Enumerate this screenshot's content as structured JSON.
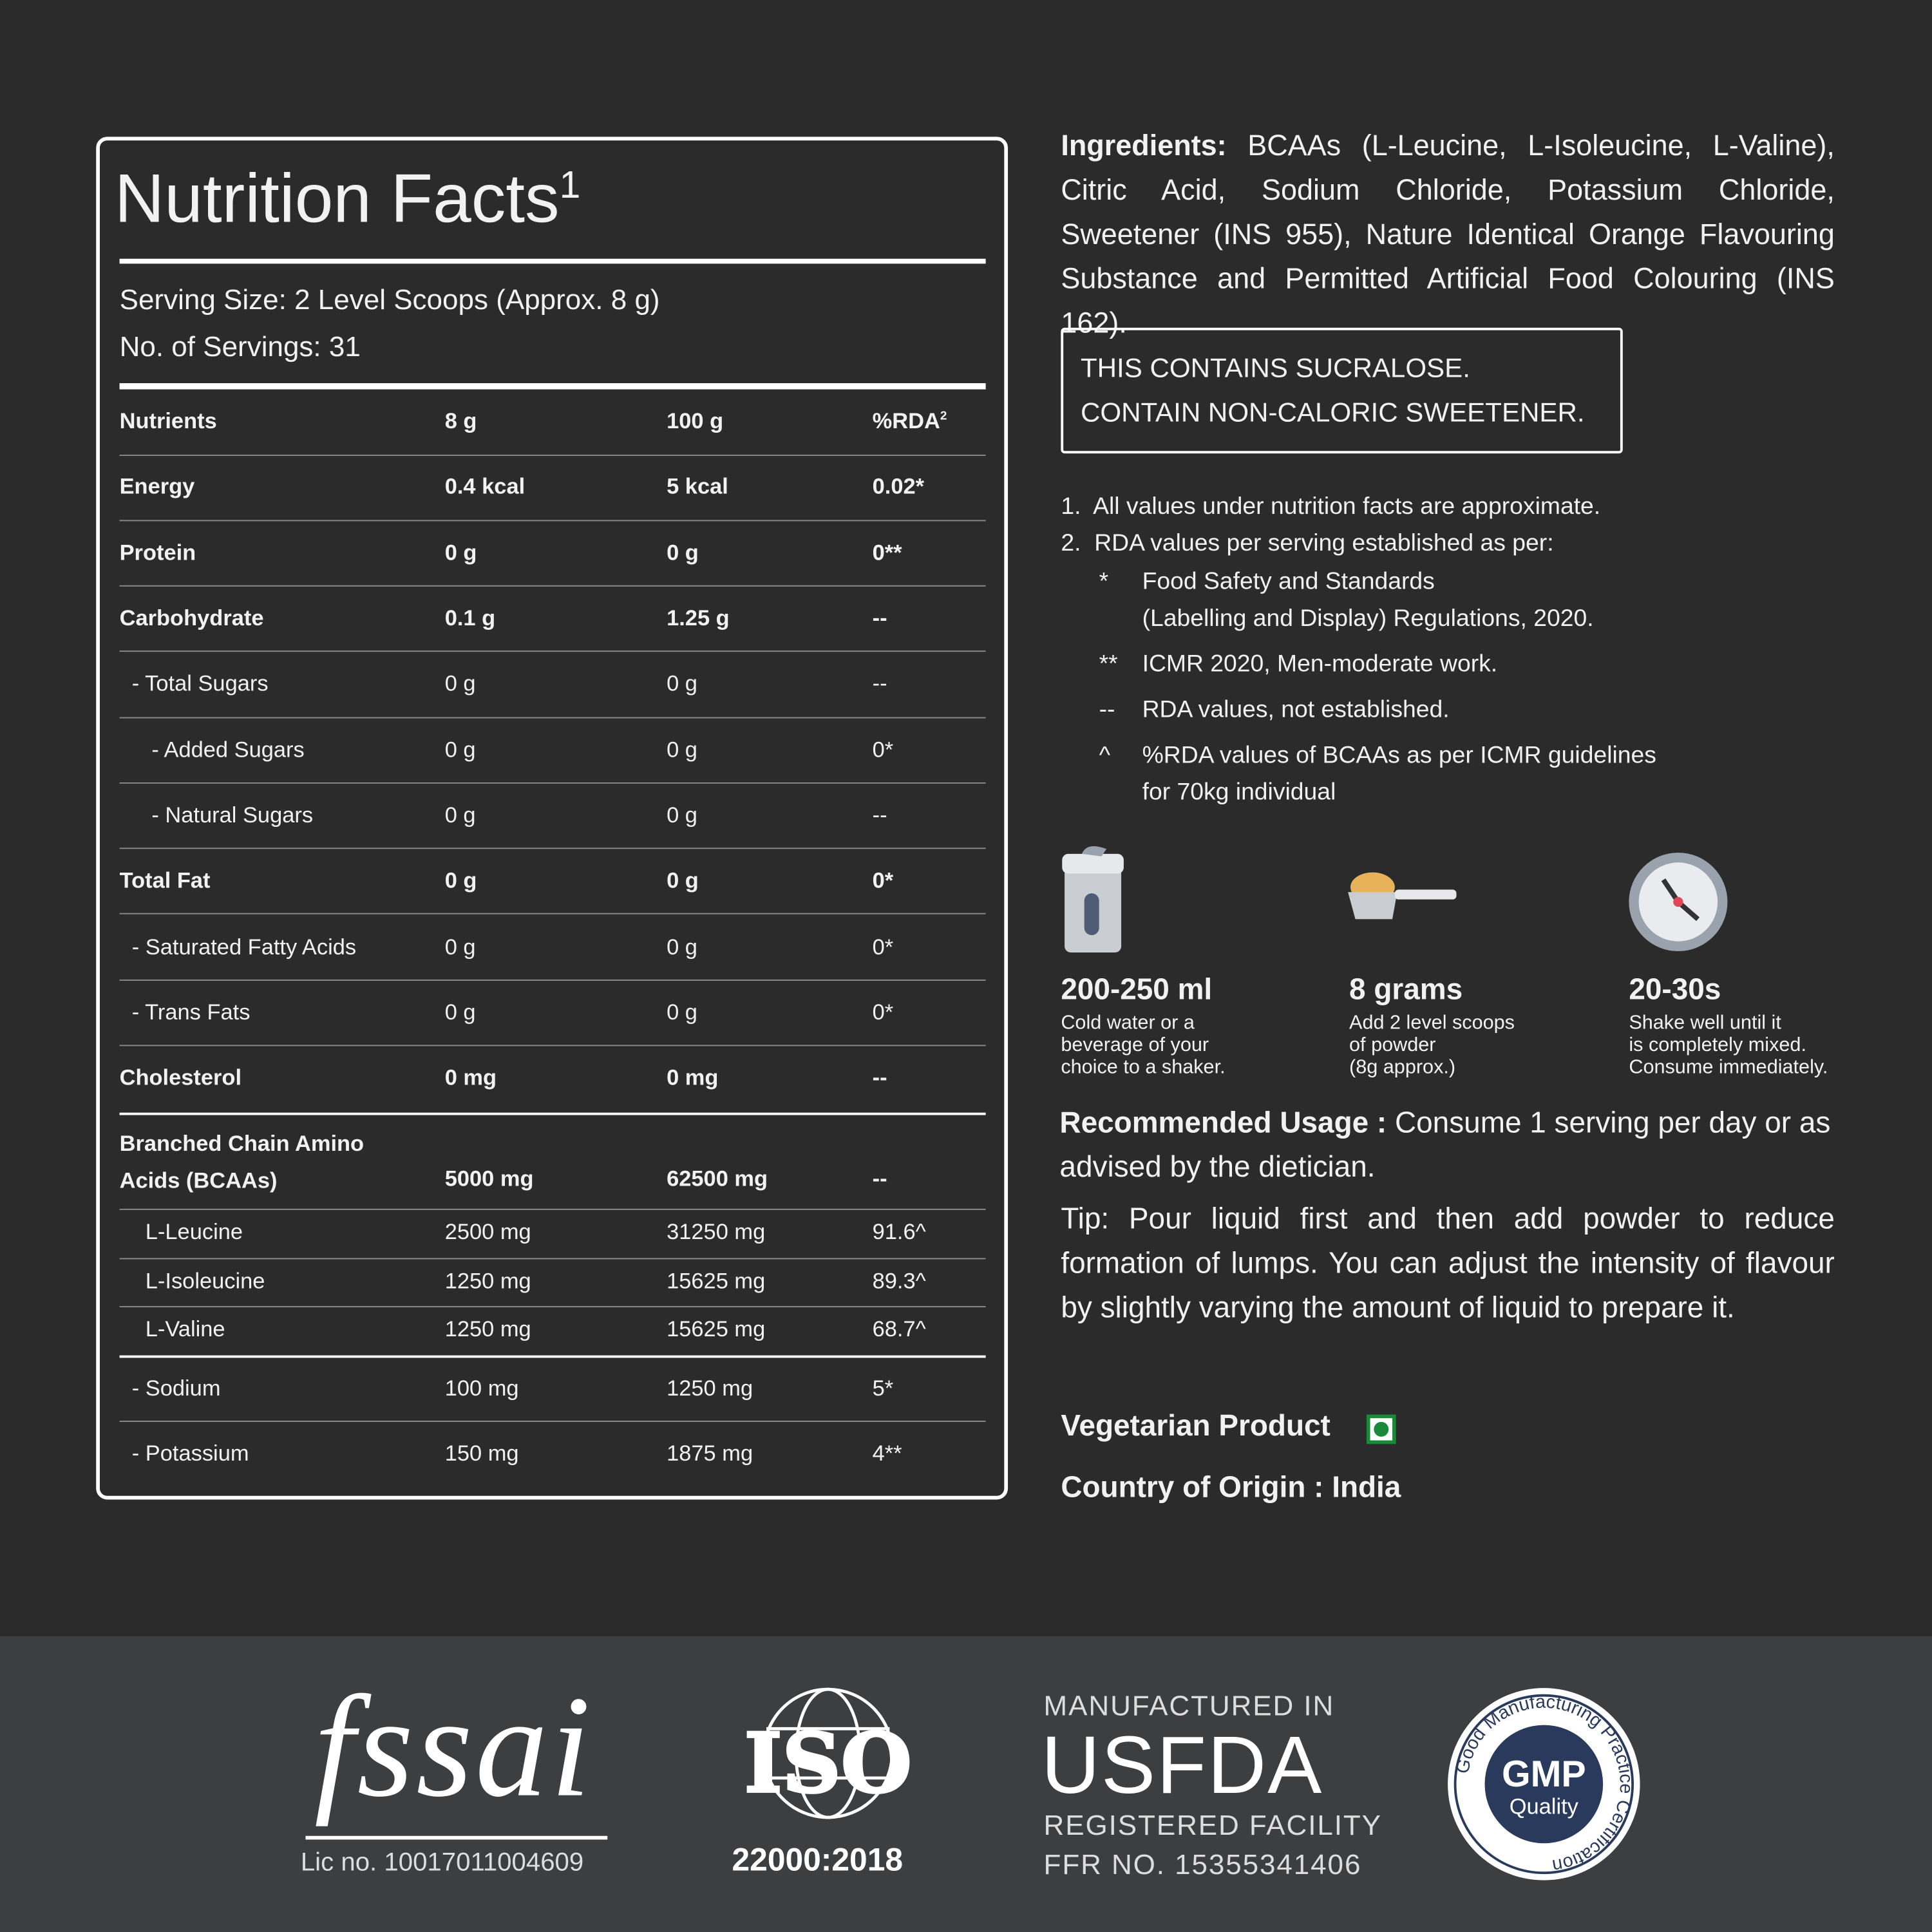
{
  "nutrition": {
    "title": "Nutrition Facts",
    "title_note": "1",
    "serving_size": "Serving Size: 2 Level Scoops (Approx. 8 g)",
    "servings": "No. of Servings: 31",
    "columns": [
      "Nutrients",
      "8 g",
      "100 g",
      "%RDA"
    ],
    "columns_note": "2",
    "rows": [
      [
        "Energy",
        "0.4 kcal",
        "5 kcal",
        "0.02*"
      ],
      [
        "Protein",
        "0 g",
        "0 g",
        "0**"
      ],
      [
        "Carbohydrate",
        "0.1 g",
        "1.25 g",
        "--"
      ],
      [
        "- Total Sugars",
        "0 g",
        "0 g",
        "--"
      ],
      [
        "- Added Sugars",
        "0 g",
        "0 g",
        "0*"
      ],
      [
        "- Natural Sugars",
        "0 g",
        "0 g",
        "--"
      ],
      [
        "Total Fat",
        "0 g",
        "0 g",
        "0*"
      ],
      [
        "- Saturated Fatty Acids",
        "0 g",
        "0 g",
        "0*"
      ],
      [
        "- Trans Fats",
        "0 g",
        "0 g",
        "0*"
      ],
      [
        "Cholesterol",
        "0 mg",
        "0 mg",
        "--"
      ],
      [
        "Branched Chain Amino Acids (BCAAs)",
        "5000 mg",
        "62500 mg",
        "--"
      ],
      [
        "L-Leucine",
        "2500 mg",
        "31250 mg",
        "91.6^"
      ],
      [
        "L-Isoleucine",
        "1250 mg",
        "15625 mg",
        "89.3^"
      ],
      [
        "L-Valine",
        "1250 mg",
        "15625 mg",
        "68.7^"
      ],
      [
        "- Sodium",
        "100 mg",
        "1250 mg",
        "5*"
      ],
      [
        "- Potassium",
        "150 mg",
        "1875 mg",
        "4**"
      ]
    ]
  },
  "ingredients": {
    "label": "Ingredients:",
    "text": "BCAAs (L-Leucine, L-Isoleucine, L-Valine), Citric Acid, Sodium Chloride, Potassium Chloride, Sweetener (INS 955), Nature Identical Orange Flavouring Substance and Permitted Artificial Food Colouring (INS 162)."
  },
  "warning": [
    "THIS CONTAINS SUCRALOSE.",
    "CONTAIN NON-CALORIC SWEETENER."
  ],
  "notes": {
    "items": [
      "All values under nutrition facts are approximate.",
      "RDA values per serving established as per:"
    ],
    "sub": [
      {
        "symbol": "*",
        "lines": [
          "Food Safety and Standards",
          "(Labelling  and  Display) Regulations, 2020."
        ]
      },
      {
        "symbol": "**",
        "lines": [
          "ICMR 2020, Men-moderate work."
        ]
      },
      {
        "symbol": "--",
        "lines": [
          "RDA values, not established."
        ]
      },
      {
        "symbol": "^",
        "lines": [
          "%RDA values of BCAAs as per ICMR guidelines",
          "for 70kg individual"
        ]
      }
    ]
  },
  "steps": [
    {
      "title": "200-250 ml",
      "lines": [
        "Cold water or a",
        "beverage of your",
        "choice to a shaker."
      ]
    },
    {
      "title": "8 grams",
      "lines": [
        "Add 2 level scoops",
        "of powder",
        "(8g approx.)"
      ]
    },
    {
      "title": "20-30s",
      "lines": [
        "Shake well until it",
        "is completely mixed.",
        "Consume immediately."
      ]
    }
  ],
  "usage": {
    "label": "Recommended Usage :",
    "text": "Consume 1 serving per day or as advised by the dietician."
  },
  "tip": "Tip: Pour liquid first and then add powder to reduce formation of lumps. You can adjust the intensity of flavour by slightly varying the amount of liquid to prepare it.",
  "vegetarian": "Vegetarian Product",
  "origin": "Country of Origin : India",
  "footer": {
    "fssai": {
      "logo": "fssai",
      "license": "Lic no. 10017011004609"
    },
    "iso": {
      "logo": "ISO",
      "standard": "22000:2018"
    },
    "usfda": {
      "line1": "MANUFACTURED IN",
      "logo": "USFDA",
      "line2": "REGISTERED FACILITY",
      "ffr": "FFR NO. 15355341406"
    },
    "gmp": {
      "ring": "Good Manufacturing Practice Certification",
      "logo": "GMP",
      "sub": "Quality"
    }
  }
}
